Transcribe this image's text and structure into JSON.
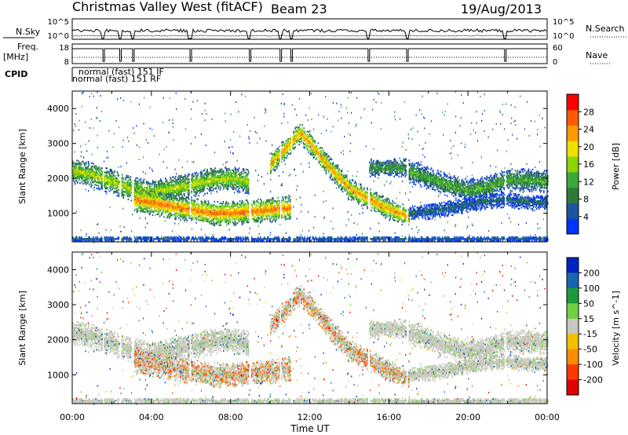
{
  "header": {
    "title": "Christmas Valley West (fitACF)",
    "beam": "Beam 23",
    "date": "19/Aug/2013"
  },
  "panels": {
    "noise": {
      "left_label": "N.Sky",
      "right_label": "N.Search",
      "left_ticks": [
        "10^5",
        "10^0"
      ],
      "right_ticks": [
        "10^5",
        "10^0"
      ]
    },
    "freq": {
      "left_label_line1": "Freq.",
      "left_label_line2": "[MHz]",
      "right_label": "Nave",
      "left_ticks": [
        "18",
        "8"
      ],
      "right_ticks": [
        "60",
        "0"
      ]
    },
    "cpid": {
      "label": "CPID",
      "entries": [
        "normal (fast) 151 IF",
        "normal (fast) 151 RF"
      ]
    }
  },
  "colors": {
    "power": [
      "#0033ff",
      "#1c55a0",
      "#2e7a3a",
      "#3aaa3a",
      "#8ad400",
      "#f0e000",
      "#ff9a00",
      "#ff5a00",
      "#ff0000"
    ],
    "velocity": [
      "#0022c0",
      "#1666b0",
      "#1e9a3a",
      "#70d040",
      "#c8c8be",
      "#f0c000",
      "#ff8c00",
      "#ff3800",
      "#e00000"
    ]
  },
  "chart_data": [
    {
      "type": "heatmap",
      "title": "Power",
      "xlabel": "",
      "ylabel": "Slant Range [km]",
      "x_ticks": [
        "00:00",
        "04:00",
        "08:00",
        "12:00",
        "16:00",
        "20:00",
        "00:00"
      ],
      "xlim_hours": [
        0,
        24
      ],
      "y_ticks": [
        1000,
        2000,
        3000,
        4000
      ],
      "ylim_km": [
        180,
        4500
      ],
      "colorbar": {
        "label": "Power [dB]",
        "ticks": [
          4,
          8,
          12,
          16,
          20,
          24,
          28
        ],
        "range": [
          0,
          32
        ]
      },
      "scatter_bands": [
        {
          "t": [
            0.0,
            1.0,
            2.0,
            3.0,
            4.0,
            5.0,
            6.0,
            7.0,
            8.0,
            9.0
          ],
          "range_km": [
            2200,
            2100,
            1900,
            1700,
            1600,
            1700,
            1800,
            1950,
            2000,
            1900
          ],
          "width_km": 350,
          "peak_db": 18
        },
        {
          "t": [
            3.0,
            4.0,
            5.0,
            6.0,
            7.0,
            8.0,
            9.0,
            10.0,
            11.0
          ],
          "range_km": [
            1400,
            1300,
            1200,
            1100,
            1000,
            1000,
            1050,
            1100,
            1150
          ],
          "width_km": 350,
          "peak_db": 26
        },
        {
          "t": [
            10.0,
            11.0,
            11.5,
            12.0,
            13.0,
            14.0,
            15.0,
            16.0,
            17.0
          ],
          "range_km": [
            2400,
            3000,
            3300,
            3000,
            2300,
            1700,
            1400,
            1100,
            900
          ],
          "width_km": 300,
          "peak_db": 24
        },
        {
          "t": [
            15.0,
            16.0,
            16.9
          ],
          "range_km": [
            2300,
            2300,
            2300
          ],
          "width_km": 250,
          "peak_db": 12
        },
        {
          "t": [
            17.0,
            18.0,
            19.0,
            20.0,
            21.0,
            22.0,
            23.0,
            24.0
          ],
          "range_km": [
            2200,
            2000,
            1800,
            1650,
            1750,
            1950,
            1950,
            1900
          ],
          "width_km": 320,
          "peak_db": 13
        },
        {
          "t": [
            17.0,
            18.0,
            19.0,
            20.0,
            21.0,
            22.0,
            23.0,
            24.0
          ],
          "range_km": [
            1000,
            1050,
            1150,
            1250,
            1350,
            1400,
            1300,
            1300
          ],
          "width_km": 220,
          "peak_db": 7
        },
        {
          "t": [
            0.0,
            6.0,
            12.0,
            18.0,
            24.0
          ],
          "range_km": [
            250,
            250,
            250,
            250,
            250
          ],
          "width_km": 80,
          "peak_db": 6
        }
      ]
    },
    {
      "type": "heatmap",
      "title": "Velocity",
      "xlabel": "Time UT",
      "ylabel": "Slant Range [km]",
      "x_ticks": [
        "00:00",
        "04:00",
        "08:00",
        "12:00",
        "16:00",
        "20:00",
        "00:00"
      ],
      "xlim_hours": [
        0,
        24
      ],
      "y_ticks": [
        1000,
        2000,
        3000,
        4000
      ],
      "ylim_km": [
        180,
        4500
      ],
      "colorbar": {
        "label": "Velocity [m s^-1]",
        "ticks": [
          200,
          100,
          50,
          15,
          -15,
          -50,
          -100,
          -200
        ],
        "range": [
          -250,
          250
        ]
      }
    }
  ]
}
